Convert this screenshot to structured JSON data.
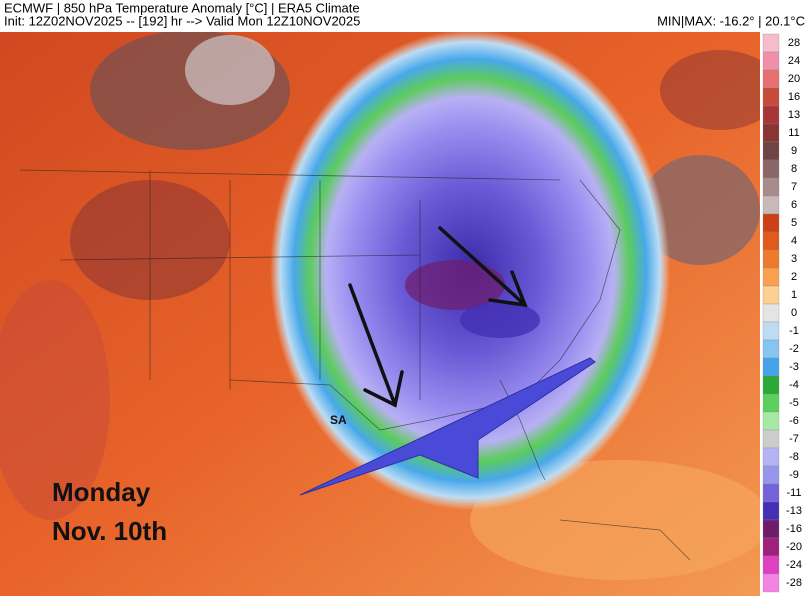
{
  "header": {
    "line1": "ECMWF | 850 hPa Temperature Anomaly [°C] | ERA5 Climate",
    "line2": "Init: 12Z02NOV2025 -- [192] hr --> Valid Mon 12Z10NOV2025",
    "minmax": "MIN|MAX: -16.2° | 20.1°C"
  },
  "colorbar": {
    "labels": [
      28,
      24,
      20,
      16,
      13,
      11,
      9,
      8,
      7,
      6,
      5,
      4,
      3,
      2,
      1,
      0,
      -1,
      -2,
      -3,
      -4,
      -5,
      -6,
      -7,
      -8,
      -9,
      -11,
      -13,
      -16,
      -20,
      -24,
      -28
    ],
    "colors": [
      "#f7bccb",
      "#f090a8",
      "#e87070",
      "#c84a3a",
      "#a83636",
      "#8a3434",
      "#6e4444",
      "#8a6666",
      "#a88c8c",
      "#c8b8b8",
      "#cc4018",
      "#e05a1c",
      "#f07a2c",
      "#f8a050",
      "#fcd08e",
      "#e4e4e4",
      "#bcdcf4",
      "#86c4f2",
      "#46a2ea",
      "#2aa838",
      "#5cd05c",
      "#a4eaa4",
      "#cccccc",
      "#b4b4f4",
      "#9696ea",
      "#7462da",
      "#4430b4",
      "#701c6c",
      "#a0207e",
      "#e040c0",
      "#f484e4"
    ]
  },
  "annotations": {
    "day": "Monday",
    "date": "Nov. 10th",
    "city": "SA"
  }
}
